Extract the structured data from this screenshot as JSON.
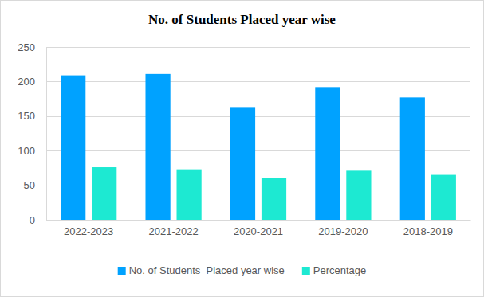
{
  "chart_data": {
    "type": "bar",
    "title": "No. of Students Placed year wise",
    "categories": [
      "2022-2023",
      "2021-2022",
      "2020-2021",
      "2019-2020",
      "2018-2019"
    ],
    "series": [
      {
        "name": "No. of Students  Placed year wise",
        "color": "#00a2ff",
        "values": [
          209,
          211,
          162,
          192,
          177
        ]
      },
      {
        "name": "Percentage",
        "color": "#1de9d2",
        "values": [
          76,
          73,
          61,
          71,
          65
        ]
      }
    ],
    "ylim": [
      0,
      250
    ],
    "yticks": [
      0,
      50,
      100,
      150,
      200,
      250
    ],
    "grid": true,
    "legend": "bottom"
  }
}
